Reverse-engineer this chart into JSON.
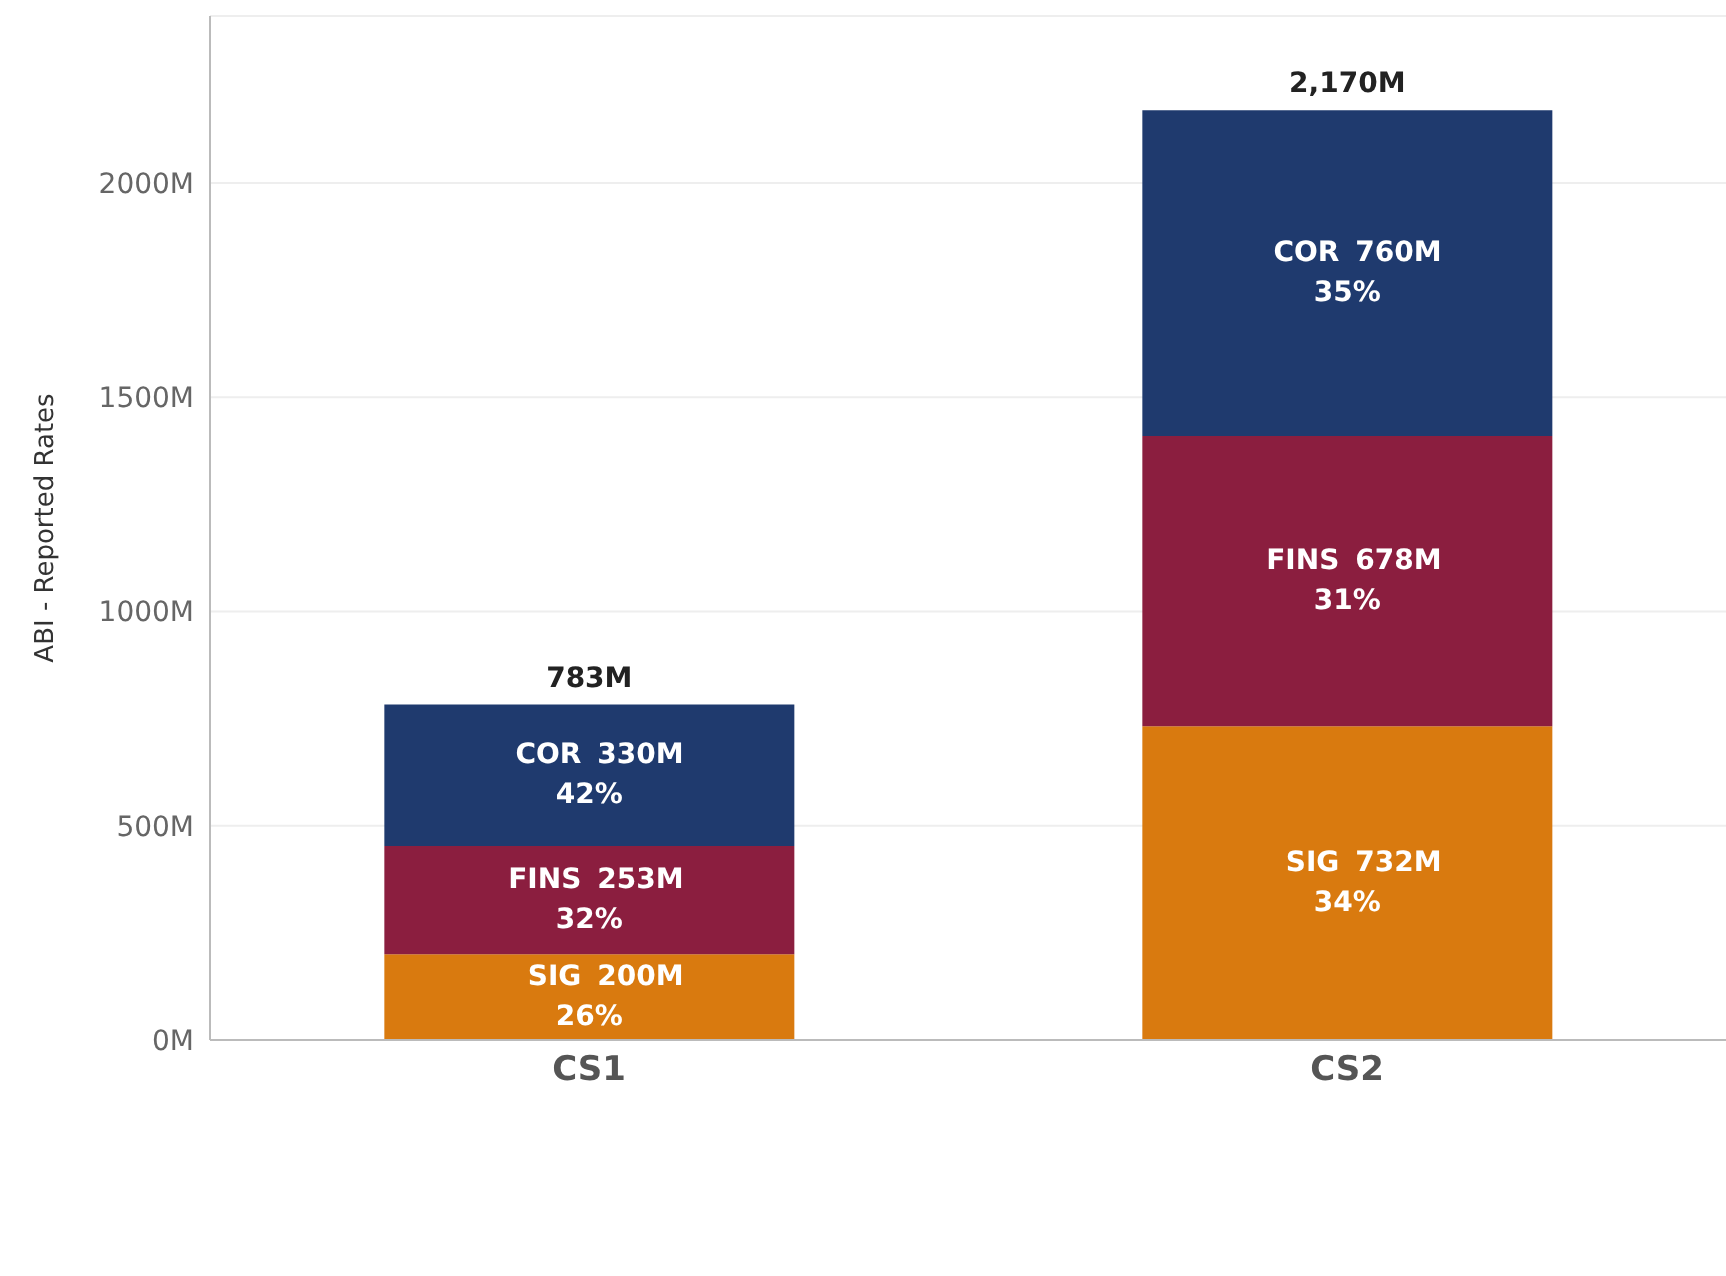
{
  "chart_data": {
    "type": "bar",
    "stacked": true,
    "ylabel": "ABI - Reported Rates",
    "categories": [
      "CS1",
      "CS2"
    ],
    "series": [
      {
        "name": "SIG",
        "color": "#d97a0f",
        "values": [
          200,
          732
        ],
        "value_labels": [
          "200M",
          "732M"
        ]
      },
      {
        "name": "FINS",
        "color": "#8b1e3f",
        "values": [
          253,
          678
        ],
        "value_labels": [
          "253M",
          "678M"
        ]
      },
      {
        "name": "COR",
        "color": "#1f3a6e",
        "values": [
          330,
          760
        ],
        "value_labels": [
          "330M",
          "760M"
        ]
      }
    ],
    "annotations": [
      "26%",
      "34%",
      "32%",
      "31%",
      "42%",
      "35%"
    ],
    "totals": [
      "783M",
      "2,170M"
    ],
    "ylim": [
      0,
      2390
    ],
    "yticks": [
      {
        "value": 0,
        "label": "0M"
      },
      {
        "value": 500,
        "label": "500M"
      },
      {
        "value": 1000,
        "label": "1000M"
      },
      {
        "value": 1500,
        "label": "1500M"
      },
      {
        "value": 2000,
        "label": "2000M"
      }
    ],
    "grid": "y"
  }
}
